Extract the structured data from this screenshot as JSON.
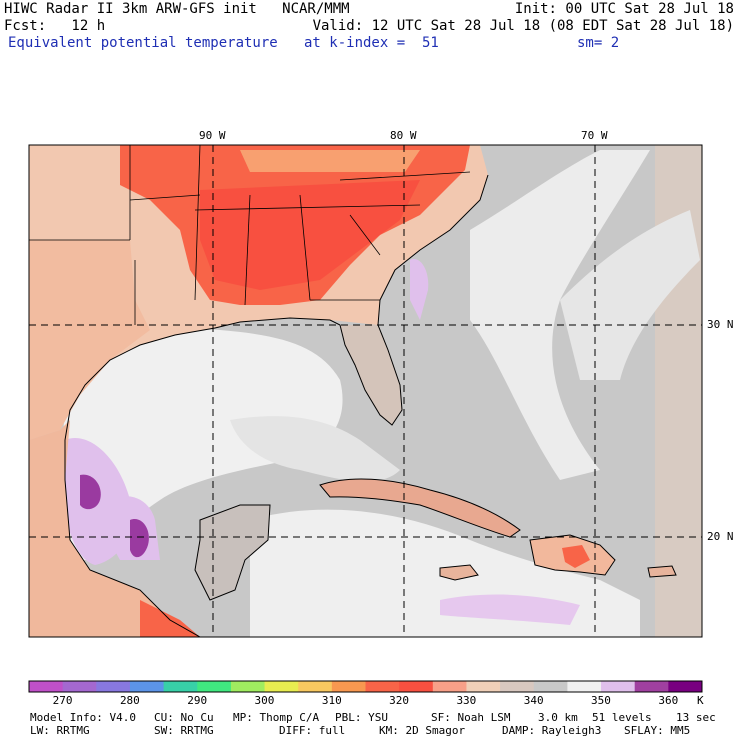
{
  "header": {
    "line1_left": "HIWC Radar II 3km ARW-GFS init   NCAR/MMM",
    "line1_right": "Init: 00 UTC Sat 28 Jul 18",
    "line2_left": "Fcst:   12 h",
    "line2_right": "Valid: 12 UTC Sat 28 Jul 18 (08 EDT Sat 28 Jul 18)",
    "field_name": "Equivalent potential temperature",
    "level": "at k-index =  51",
    "smoothing": "sm= 2"
  },
  "map": {
    "lon_labels": [
      "90 W",
      "80 W",
      "70 W"
    ],
    "lat_labels": [
      "30 N",
      "20 N"
    ]
  },
  "colorbar": {
    "labels": [
      "270",
      "280",
      "290",
      "300",
      "310",
      "320",
      "330",
      "340",
      "350",
      "360"
    ],
    "unit": "K",
    "colors": [
      "#c050c8",
      "#a468d0",
      "#8878e0",
      "#5c94e8",
      "#38d0a8",
      "#40e880",
      "#a0ec60",
      "#e8ec50",
      "#f8c860",
      "#f89850",
      "#f86448",
      "#f85040",
      "#f8a088",
      "#f0d0b8",
      "#d8c8c0",
      "#c8c8c8",
      "#f0f0f0",
      "#e0c0ec",
      "#a040a0",
      "#780080"
    ]
  },
  "footer": {
    "line1": [
      "Model Info: V4.0",
      "CU: No Cu",
      "MP: Thomp C/A",
      "PBL: YSU",
      "SF: Noah LSM",
      "3.0 km",
      "51 levels",
      "13 sec"
    ],
    "line2": [
      "LW: RRTMG",
      "SW: RRTMG",
      "DIFF: full",
      "KM: 2D Smagor",
      "DAMP: Rayleigh3",
      "SFLAY: MM5"
    ]
  }
}
